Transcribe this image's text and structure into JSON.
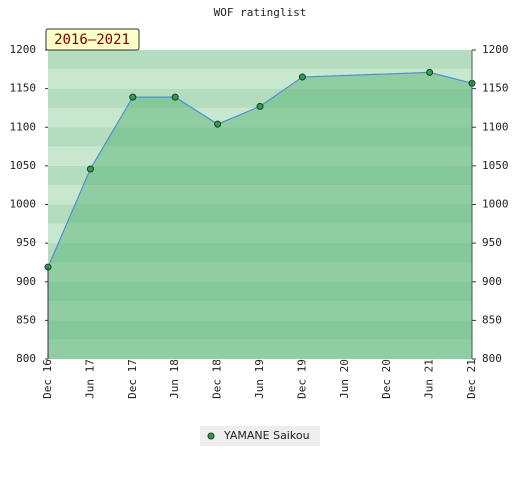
{
  "chart_data": {
    "type": "line",
    "title": "WOF ratinglist",
    "annotation": "2016–2021",
    "categories": [
      "Dec 16",
      "Jun 17",
      "Dec 17",
      "Jun 18",
      "Dec 18",
      "Jun 19",
      "Dec 19",
      "Jun 20",
      "Dec 20",
      "Jun 21",
      "Dec 21"
    ],
    "series": [
      {
        "name": "YAMANE Saikou",
        "color": "#2e9e4e",
        "values": [
          919,
          1046,
          1139,
          1139,
          1104,
          1127,
          1165,
          null,
          null,
          1171,
          1157
        ]
      }
    ],
    "ylim": [
      800,
      1200
    ],
    "yticks": [
      800,
      850,
      900,
      950,
      1000,
      1050,
      1100,
      1150,
      1200
    ],
    "y2lim": [
      800,
      1200
    ],
    "y2ticks": [
      800,
      850,
      900,
      950,
      1000,
      1050,
      1100,
      1150,
      1200
    ],
    "legend": "bottom"
  }
}
